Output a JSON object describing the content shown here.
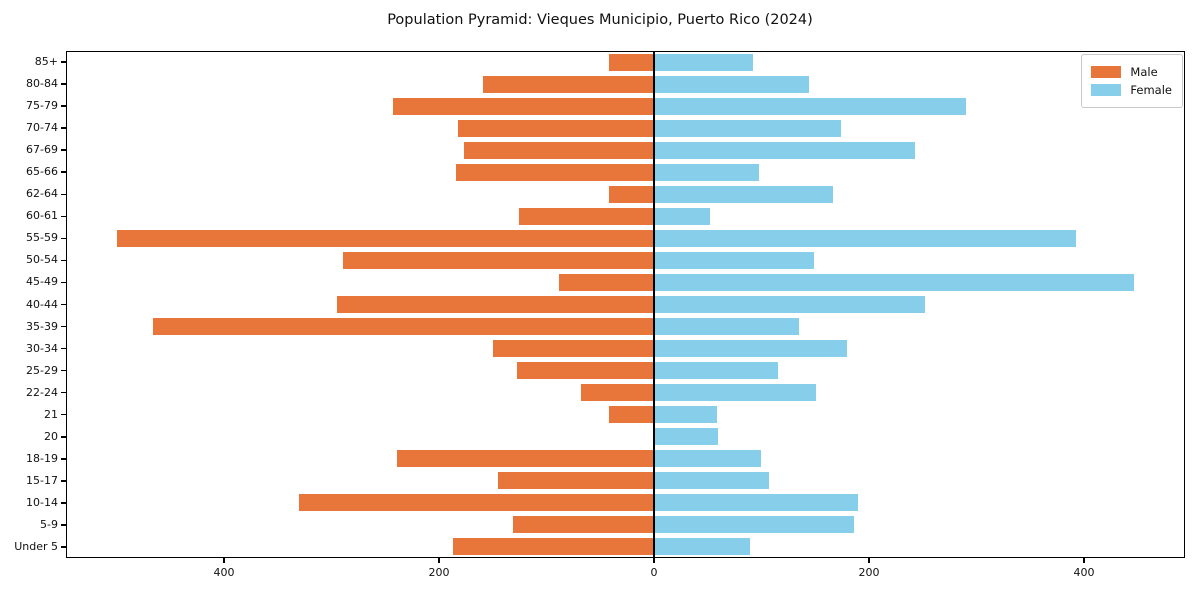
{
  "title": "Population Pyramid: Vieques Municipio, Puerto Rico (2024)",
  "legend": {
    "male_label": "Male",
    "female_label": "Female"
  },
  "colors": {
    "male": "#e8763a",
    "female": "#87ceeb",
    "axis": "#000000",
    "legend_border": "#c9c9c9",
    "background": "#ffffff"
  },
  "chart_data": {
    "type": "bar",
    "variant": "population-pyramid",
    "title": "Population Pyramid: Vieques Municipio, Puerto Rico (2024)",
    "categories": [
      "85+",
      "80-84",
      "75-79",
      "70-74",
      "67-69",
      "65-66",
      "62-64",
      "60-61",
      "55-59",
      "50-54",
      "45-49",
      "40-44",
      "35-39",
      "30-34",
      "25-29",
      "22-24",
      "21",
      "20",
      "18-19",
      "15-17",
      "10-14",
      "5-9",
      "Under 5"
    ],
    "series": [
      {
        "name": "Male",
        "side": "left",
        "color": "#e8763a",
        "values": [
          42,
          159,
          243,
          182,
          177,
          184,
          42,
          126,
          500,
          289,
          88,
          295,
          466,
          150,
          127,
          68,
          42,
          0,
          239,
          145,
          330,
          131,
          187
        ]
      },
      {
        "name": "Female",
        "side": "right",
        "color": "#87ceeb",
        "values": [
          92,
          144,
          290,
          174,
          243,
          98,
          167,
          52,
          393,
          149,
          447,
          252,
          135,
          180,
          115,
          151,
          59,
          60,
          100,
          107,
          190,
          186,
          89
        ]
      }
    ],
    "x_tick_values": [
      -400,
      -200,
      0,
      200,
      400
    ],
    "x_tick_labels": [
      "400",
      "200",
      "0",
      "200",
      "400"
    ],
    "xlim": [
      -547,
      494
    ],
    "ylabel": "",
    "xlabel": "",
    "grid": false,
    "legend_position": "upper-right"
  }
}
